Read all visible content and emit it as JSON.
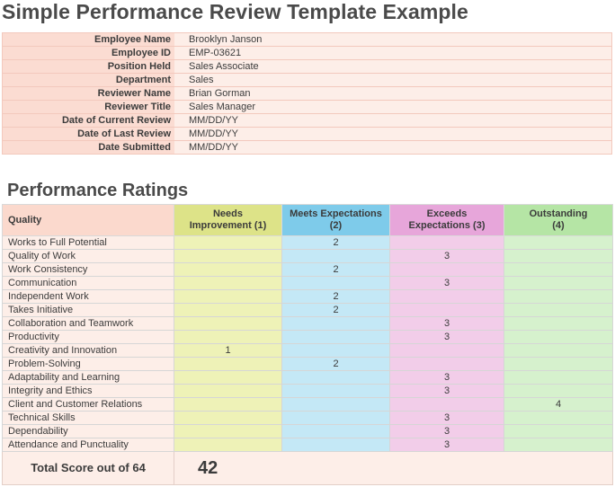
{
  "title": "Simple Performance Review Template Example",
  "info": [
    {
      "label": "Employee Name",
      "value": "Brooklyn Janson"
    },
    {
      "label": "Employee ID",
      "value": "EMP-03621"
    },
    {
      "label": "Position Held",
      "value": "Sales Associate"
    },
    {
      "label": "Department",
      "value": "Sales"
    },
    {
      "label": "Reviewer Name",
      "value": "Brian Gorman"
    },
    {
      "label": "Reviewer Title",
      "value": "Sales Manager"
    },
    {
      "label": "Date of Current Review",
      "value": "MM/DD/YY"
    },
    {
      "label": "Date of Last Review",
      "value": "MM/DD/YY"
    },
    {
      "label": "Date Submitted",
      "value": "MM/DD/YY"
    }
  ],
  "ratings": {
    "section_title": "Performance Ratings",
    "quality_header": "Quality",
    "columns": [
      {
        "line1": "Needs",
        "line2": "Improvement (1)",
        "color": "#dde388"
      },
      {
        "line1": "Meets Expectations",
        "line2": "(2)",
        "color": "#7ecbea"
      },
      {
        "line1": "Exceeds",
        "line2": "Expectations (3)",
        "color": "#e7a6da"
      },
      {
        "line1": "Outstanding",
        "line2": "(4)",
        "color": "#b5e5a5"
      }
    ],
    "rows": [
      {
        "quality": "Works to Full Potential",
        "scores": [
          "",
          "2",
          "",
          ""
        ]
      },
      {
        "quality": "Quality of Work",
        "scores": [
          "",
          "",
          "3",
          ""
        ]
      },
      {
        "quality": "Work Consistency",
        "scores": [
          "",
          "2",
          "",
          ""
        ]
      },
      {
        "quality": "Communication",
        "scores": [
          "",
          "",
          "3",
          ""
        ]
      },
      {
        "quality": "Independent Work",
        "scores": [
          "",
          "2",
          "",
          ""
        ]
      },
      {
        "quality": "Takes Initiative",
        "scores": [
          "",
          "2",
          "",
          ""
        ]
      },
      {
        "quality": "Collaboration and Teamwork",
        "scores": [
          "",
          "",
          "3",
          ""
        ]
      },
      {
        "quality": "Productivity",
        "scores": [
          "",
          "",
          "3",
          ""
        ]
      },
      {
        "quality": "Creativity and Innovation",
        "scores": [
          "1",
          "",
          "",
          ""
        ]
      },
      {
        "quality": "Problem-Solving",
        "scores": [
          "",
          "2",
          "",
          ""
        ]
      },
      {
        "quality": "Adaptability and Learning",
        "scores": [
          "",
          "",
          "3",
          ""
        ]
      },
      {
        "quality": "Integrity and Ethics",
        "scores": [
          "",
          "",
          "3",
          ""
        ]
      },
      {
        "quality": "Client and Customer Relations",
        "scores": [
          "",
          "",
          "",
          "4"
        ]
      },
      {
        "quality": "Technical Skills",
        "scores": [
          "",
          "",
          "3",
          ""
        ]
      },
      {
        "quality": "Dependability",
        "scores": [
          "",
          "",
          "3",
          ""
        ]
      },
      {
        "quality": "Attendance and Punctuality",
        "scores": [
          "",
          "",
          "3",
          ""
        ]
      }
    ],
    "total_label": "Total Score out of 64",
    "total_value": "42"
  }
}
